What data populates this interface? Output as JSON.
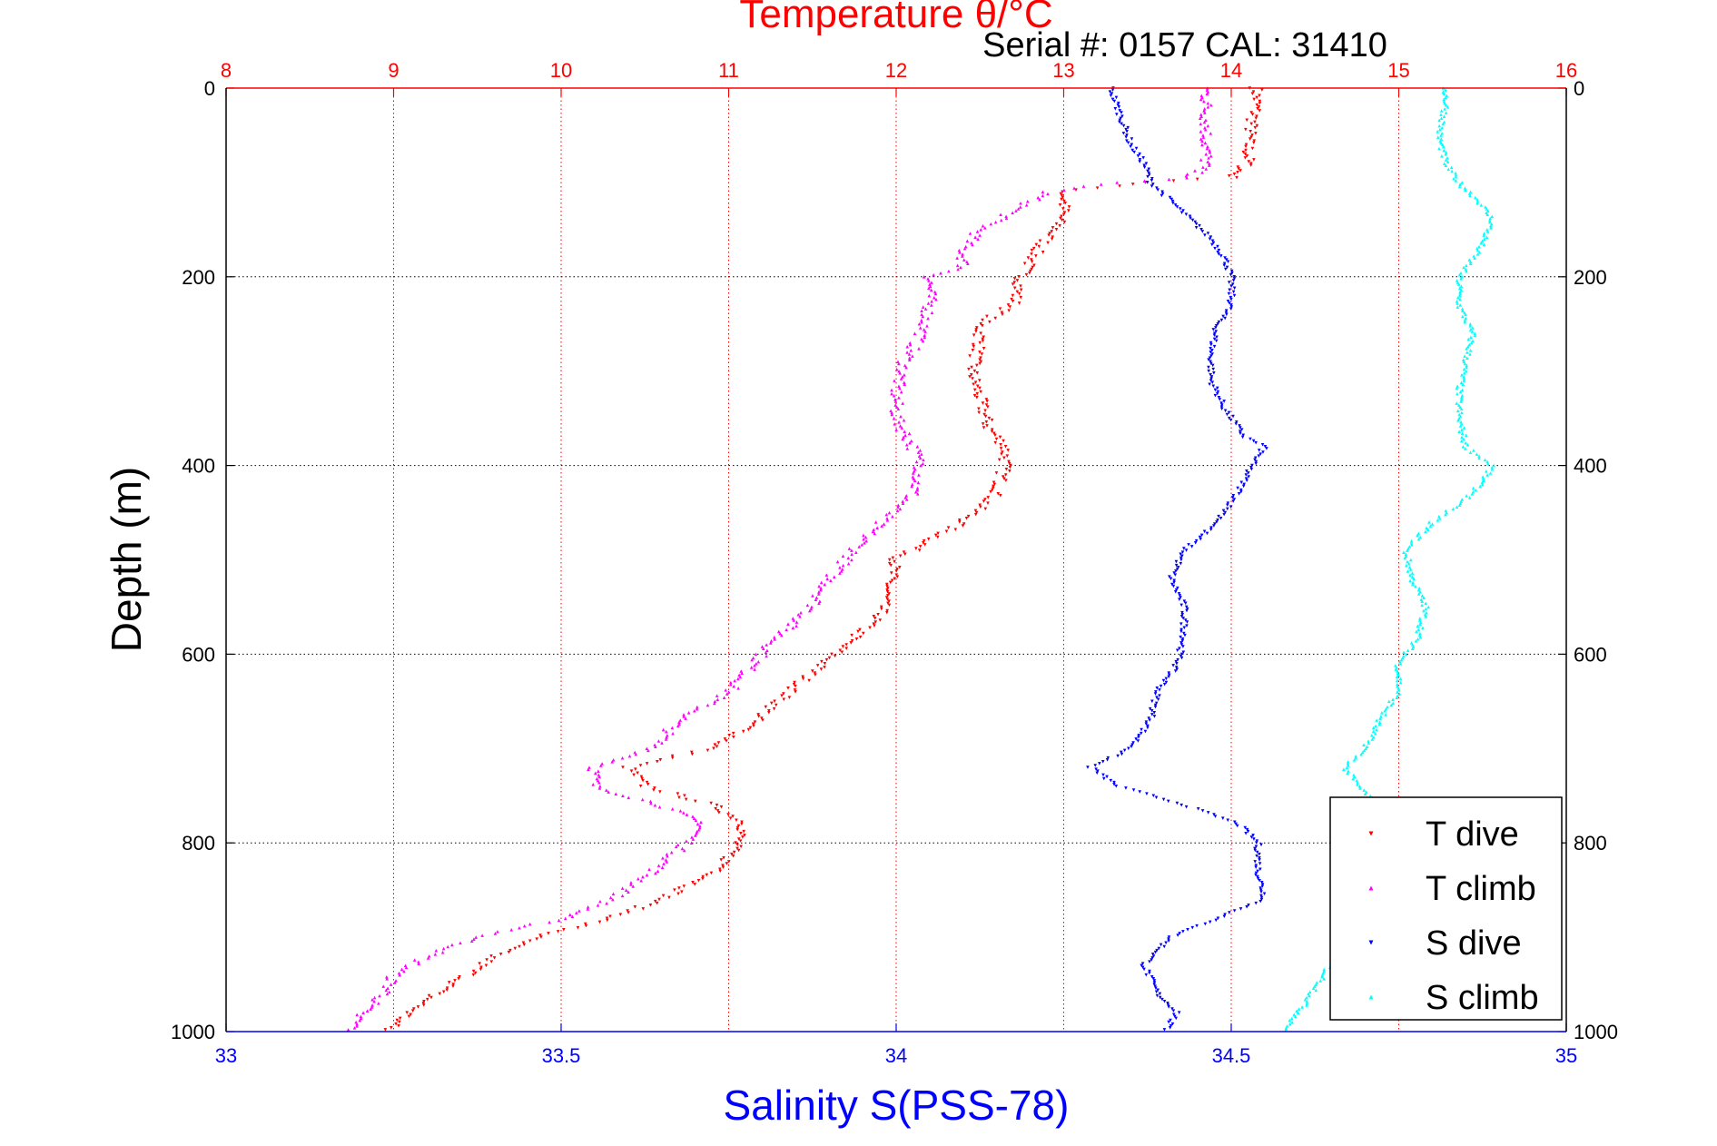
{
  "chart_data": {
    "type": "scatter",
    "top_axis_title": "Temperature θ/°C",
    "serial_label": "Serial #: 0157  CAL: 31410",
    "xlabel": "Salinity S(PSS-78)",
    "ylabel": "Depth (m)",
    "temperature_axis": {
      "range": [
        8,
        16
      ],
      "ticks": [
        "8",
        "9",
        "10",
        "11",
        "12",
        "13",
        "14",
        "15",
        "16"
      ],
      "color": "#ff0000"
    },
    "salinity_axis": {
      "range": [
        33,
        35
      ],
      "ticks": [
        "33",
        "33.5",
        "34",
        "34.5",
        "35"
      ],
      "color": "#0000ff"
    },
    "depth_axis": {
      "range": [
        0,
        1000
      ],
      "ticks": [
        "0",
        "200",
        "400",
        "600",
        "800",
        "1000"
      ],
      "reversed": true
    },
    "grid": true,
    "legend_position": "bottom-right",
    "series": [
      {
        "name": "T dive",
        "axis": "temperature",
        "color": "#ff0000",
        "marker": "triangle-down",
        "profile": [
          [
            0,
            14.15
          ],
          [
            20,
            14.15
          ],
          [
            40,
            14.12
          ],
          [
            60,
            14.1
          ],
          [
            80,
            14.1
          ],
          [
            95,
            14.0
          ],
          [
            100,
            13.5
          ],
          [
            110,
            13.0
          ],
          [
            130,
            13.0
          ],
          [
            150,
            12.95
          ],
          [
            170,
            12.85
          ],
          [
            200,
            12.75
          ],
          [
            230,
            12.7
          ],
          [
            250,
            12.5
          ],
          [
            270,
            12.5
          ],
          [
            300,
            12.45
          ],
          [
            330,
            12.5
          ],
          [
            360,
            12.55
          ],
          [
            380,
            12.65
          ],
          [
            400,
            12.65
          ],
          [
            430,
            12.6
          ],
          [
            460,
            12.4
          ],
          [
            480,
            12.2
          ],
          [
            500,
            12.0
          ],
          [
            530,
            11.95
          ],
          [
            560,
            11.9
          ],
          [
            590,
            11.7
          ],
          [
            620,
            11.5
          ],
          [
            650,
            11.3
          ],
          [
            680,
            11.1
          ],
          [
            700,
            10.9
          ],
          [
            720,
            10.4
          ],
          [
            740,
            10.5
          ],
          [
            760,
            10.9
          ],
          [
            780,
            11.1
          ],
          [
            800,
            11.05
          ],
          [
            830,
            10.95
          ],
          [
            860,
            10.6
          ],
          [
            880,
            10.3
          ],
          [
            900,
            9.85
          ],
          [
            920,
            9.6
          ],
          [
            940,
            9.45
          ],
          [
            960,
            9.25
          ],
          [
            980,
            9.1
          ],
          [
            1000,
            8.95
          ]
        ]
      },
      {
        "name": "T climb",
        "axis": "temperature",
        "color": "#ff00ff",
        "marker": "triangle-up",
        "profile": [
          [
            0,
            13.85
          ],
          [
            20,
            13.85
          ],
          [
            50,
            13.85
          ],
          [
            80,
            13.85
          ],
          [
            95,
            13.75
          ],
          [
            100,
            13.3
          ],
          [
            110,
            12.9
          ],
          [
            130,
            12.7
          ],
          [
            150,
            12.5
          ],
          [
            170,
            12.4
          ],
          [
            190,
            12.4
          ],
          [
            200,
            12.2
          ],
          [
            230,
            12.2
          ],
          [
            260,
            12.15
          ],
          [
            290,
            12.05
          ],
          [
            320,
            12.0
          ],
          [
            350,
            12.0
          ],
          [
            380,
            12.1
          ],
          [
            400,
            12.15
          ],
          [
            430,
            12.1
          ],
          [
            460,
            11.9
          ],
          [
            490,
            11.75
          ],
          [
            520,
            11.6
          ],
          [
            550,
            11.5
          ],
          [
            580,
            11.3
          ],
          [
            610,
            11.15
          ],
          [
            640,
            11.0
          ],
          [
            670,
            10.7
          ],
          [
            700,
            10.55
          ],
          [
            720,
            10.2
          ],
          [
            740,
            10.2
          ],
          [
            760,
            10.6
          ],
          [
            780,
            10.85
          ],
          [
            800,
            10.75
          ],
          [
            830,
            10.55
          ],
          [
            860,
            10.3
          ],
          [
            880,
            10.0
          ],
          [
            900,
            9.5
          ],
          [
            920,
            9.2
          ],
          [
            940,
            9.0
          ],
          [
            960,
            8.95
          ],
          [
            980,
            8.8
          ],
          [
            1000,
            8.75
          ]
        ]
      },
      {
        "name": "S dive",
        "axis": "salinity",
        "color": "#0000ff",
        "marker": "triangle-down",
        "profile": [
          [
            0,
            34.32
          ],
          [
            20,
            34.33
          ],
          [
            40,
            34.34
          ],
          [
            60,
            34.35
          ],
          [
            80,
            34.37
          ],
          [
            100,
            34.38
          ],
          [
            120,
            34.41
          ],
          [
            140,
            34.44
          ],
          [
            160,
            34.47
          ],
          [
            180,
            34.49
          ],
          [
            200,
            34.5
          ],
          [
            230,
            34.5
          ],
          [
            250,
            34.48
          ],
          [
            280,
            34.47
          ],
          [
            310,
            34.47
          ],
          [
            340,
            34.49
          ],
          [
            370,
            34.52
          ],
          [
            380,
            34.55
          ],
          [
            400,
            34.53
          ],
          [
            430,
            34.51
          ],
          [
            460,
            34.48
          ],
          [
            490,
            34.43
          ],
          [
            520,
            34.41
          ],
          [
            550,
            34.43
          ],
          [
            580,
            34.43
          ],
          [
            610,
            34.42
          ],
          [
            640,
            34.39
          ],
          [
            670,
            34.38
          ],
          [
            700,
            34.35
          ],
          [
            720,
            34.29
          ],
          [
            740,
            34.33
          ],
          [
            760,
            34.43
          ],
          [
            780,
            34.51
          ],
          [
            800,
            34.54
          ],
          [
            830,
            34.54
          ],
          [
            860,
            34.55
          ],
          [
            880,
            34.48
          ],
          [
            900,
            34.41
          ],
          [
            930,
            34.37
          ],
          [
            960,
            34.39
          ],
          [
            980,
            34.42
          ],
          [
            1000,
            34.4
          ]
        ]
      },
      {
        "name": "S climb",
        "axis": "salinity",
        "color": "#00ffff",
        "marker": "triangle-up",
        "profile": [
          [
            0,
            34.82
          ],
          [
            20,
            34.82
          ],
          [
            50,
            34.81
          ],
          [
            80,
            34.82
          ],
          [
            100,
            34.84
          ],
          [
            120,
            34.87
          ],
          [
            140,
            34.89
          ],
          [
            170,
            34.87
          ],
          [
            200,
            34.84
          ],
          [
            230,
            34.84
          ],
          [
            260,
            34.86
          ],
          [
            290,
            34.85
          ],
          [
            320,
            34.84
          ],
          [
            350,
            34.84
          ],
          [
            380,
            34.85
          ],
          [
            400,
            34.89
          ],
          [
            430,
            34.86
          ],
          [
            460,
            34.8
          ],
          [
            490,
            34.76
          ],
          [
            520,
            34.77
          ],
          [
            550,
            34.79
          ],
          [
            580,
            34.78
          ],
          [
            610,
            34.75
          ],
          [
            640,
            34.75
          ],
          [
            670,
            34.72
          ],
          [
            700,
            34.7
          ],
          [
            720,
            34.67
          ],
          [
            740,
            34.69
          ],
          [
            760,
            34.72
          ],
          [
            780,
            34.68
          ],
          [
            800,
            34.66
          ],
          [
            830,
            34.67
          ],
          [
            860,
            34.68
          ],
          [
            900,
            34.67
          ],
          [
            950,
            34.63
          ],
          [
            980,
            34.6
          ],
          [
            1000,
            34.58
          ]
        ]
      }
    ]
  }
}
